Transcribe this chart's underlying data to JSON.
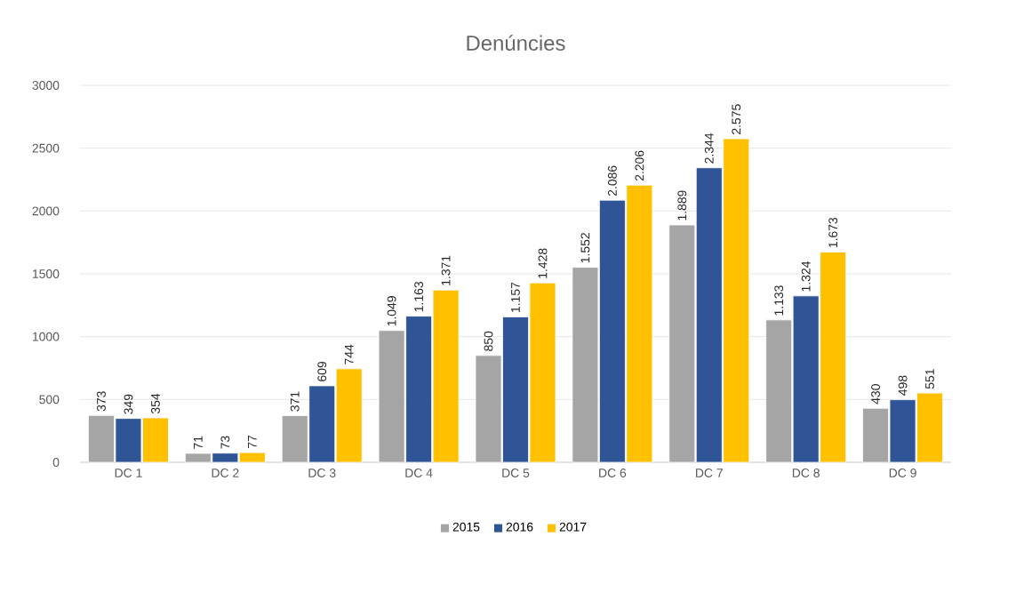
{
  "chart_data": {
    "type": "bar",
    "title": "Denúncies",
    "categories": [
      "DC 1",
      "DC 2",
      "DC 3",
      "DC 4",
      "DC 5",
      "DC 6",
      "DC 7",
      "DC 8",
      "DC 9"
    ],
    "series": [
      {
        "name": "2015",
        "color": "#a5a5a5",
        "values": [
          373,
          71,
          371,
          1049,
          850,
          1552,
          1889,
          1133,
          430
        ],
        "value_labels": [
          "373",
          "71",
          "371",
          "1.049",
          "850",
          "1.552",
          "1.889",
          "1.133",
          "430"
        ]
      },
      {
        "name": "2016",
        "color": "#2f5597",
        "values": [
          349,
          73,
          609,
          1163,
          1157,
          2086,
          2344,
          1324,
          498
        ],
        "value_labels": [
          "349",
          "73",
          "609",
          "1.163",
          "1.157",
          "2.086",
          "2.344",
          "1.324",
          "498"
        ]
      },
      {
        "name": "2017",
        "color": "#ffc000",
        "values": [
          354,
          77,
          744,
          1371,
          1428,
          2206,
          2575,
          1673,
          551
        ],
        "value_labels": [
          "354",
          "77",
          "744",
          "1.371",
          "1.428",
          "2.206",
          "2.575",
          "1.673",
          "551"
        ]
      }
    ],
    "ylim": [
      0,
      3000
    ],
    "yticks": [
      0,
      500,
      1000,
      1500,
      2000,
      2500,
      3000
    ],
    "grid": "y",
    "legend": "bottom"
  }
}
